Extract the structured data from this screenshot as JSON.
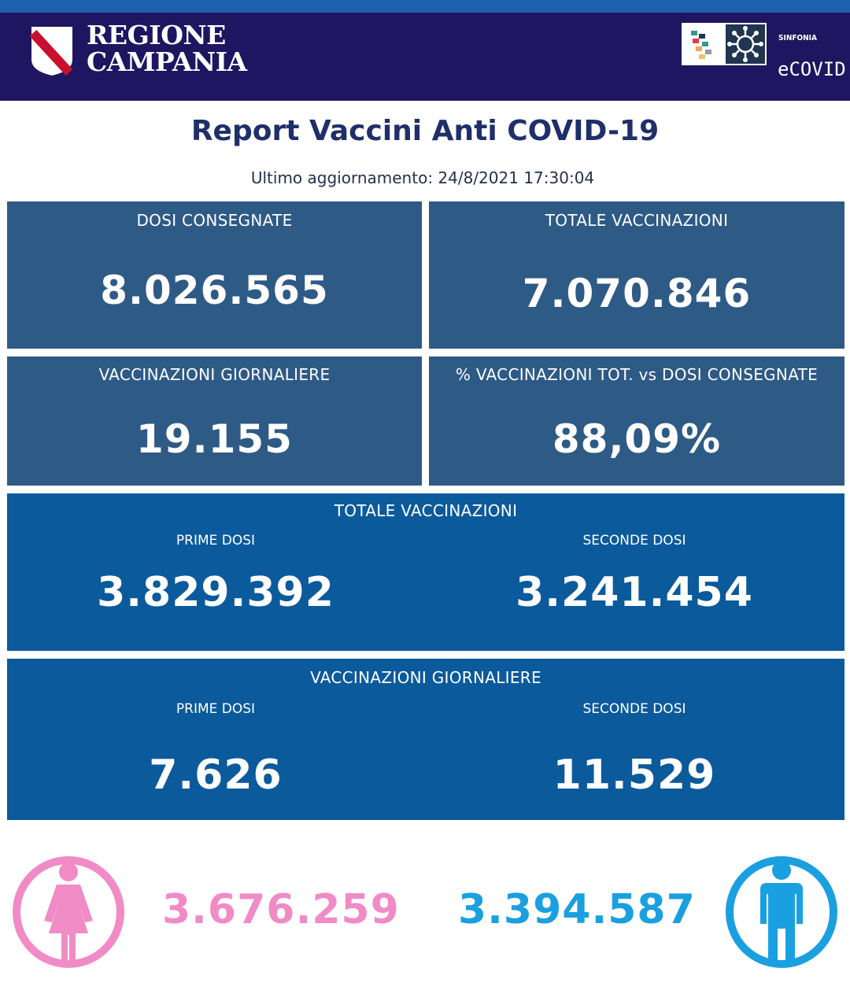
{
  "header": {
    "region_line1": "REGIONE",
    "region_line2": "CAMPANIA",
    "brand_small": "SINFONIA",
    "brand_big": "eCOVID"
  },
  "title": "Report Vaccini Anti COVID-19",
  "updated": "Ultimo aggiornamento: 24/8/2021  17:30:04",
  "cards": {
    "dosi_consegnate": {
      "label": "DOSI  CONSEGNATE",
      "value": "8.026.565"
    },
    "totale_vaccinazioni": {
      "label": "TOTALE VACCINAZIONI",
      "value": "7.070.846"
    },
    "vaccinazioni_giornaliere": {
      "label": "VACCINAZIONI GIORNALIERE",
      "value": "19.155"
    },
    "percentuale": {
      "label": "% VACCINAZIONI TOT. vs DOSI CONSEGNATE",
      "value": "88,09%"
    }
  },
  "totale_section": {
    "label": "TOTALE VACCINAZIONI",
    "prime_label": "PRIME DOSI",
    "prime_value": "3.829.392",
    "seconde_label": "SECONDE DOSI",
    "seconde_value": "3.241.454"
  },
  "giornaliere_section": {
    "label": "VACCINAZIONI GIORNALIERE",
    "prime_label": "PRIME DOSI",
    "prime_value": "7.626",
    "seconde_label": "SECONDE DOSI",
    "seconde_value": "11.529"
  },
  "gender": {
    "female_value": "3.676.259",
    "male_value": "3.394.587",
    "female_color": "#f08bc6",
    "male_color": "#1aa0e0"
  },
  "colors": {
    "header_bg": "#1f1560",
    "card_dark": "#2e5a86",
    "card_blue": "#0b5a9c",
    "title": "#1f2f6a"
  }
}
